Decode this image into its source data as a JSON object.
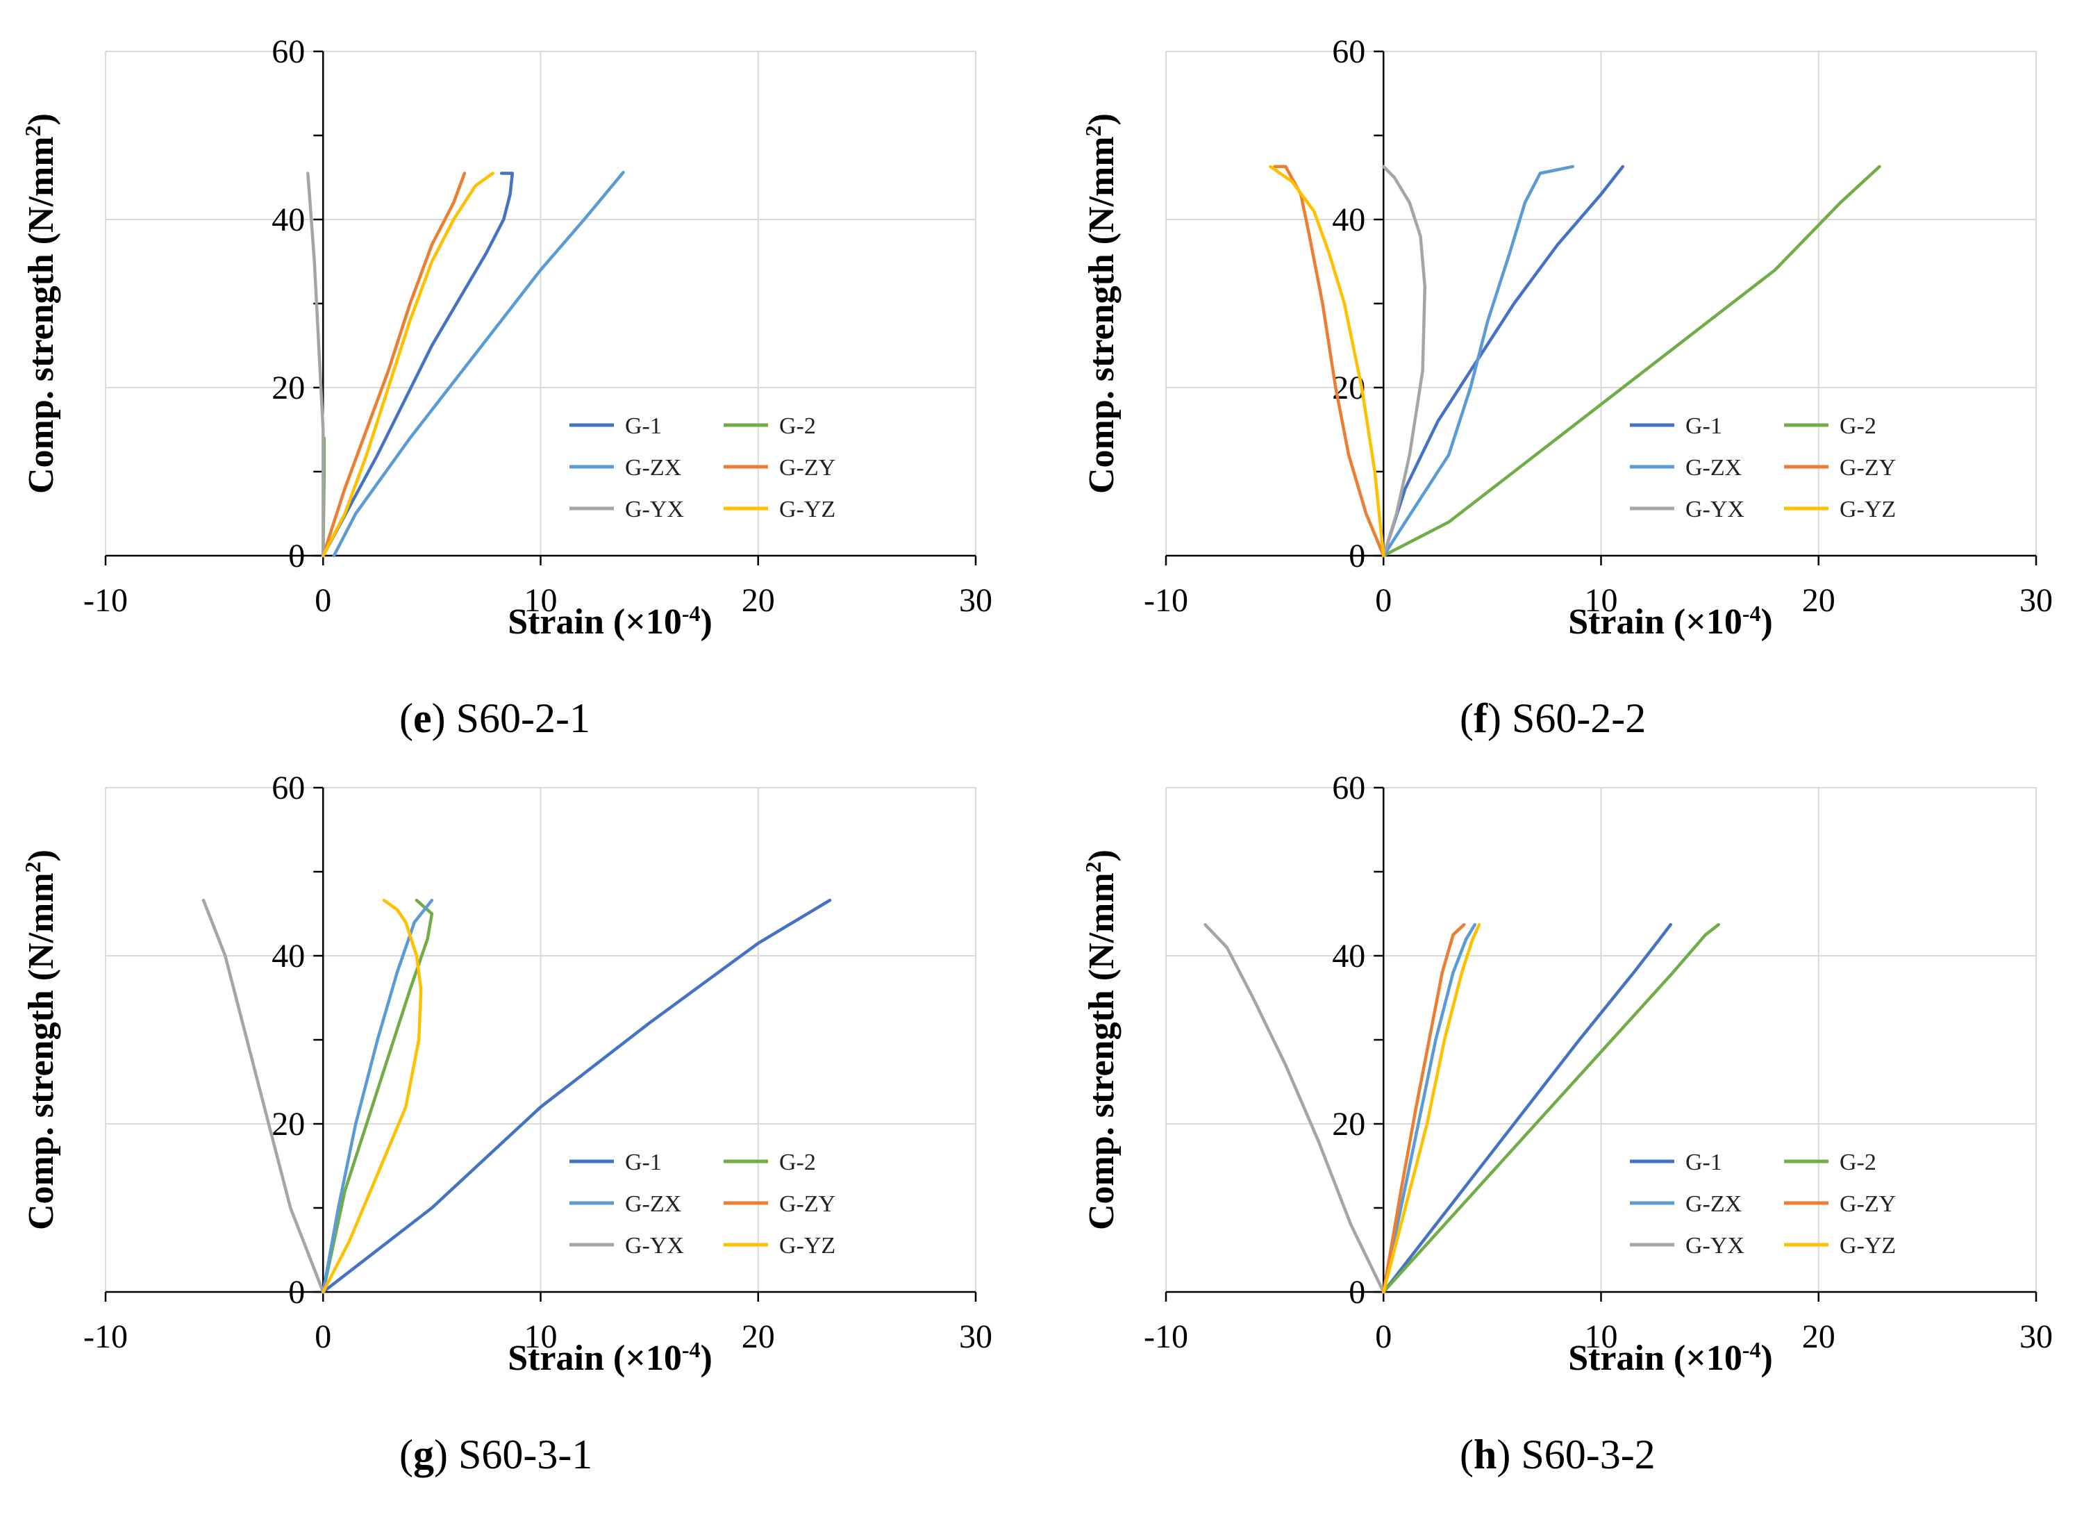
{
  "colors": {
    "G-1": "#4472C4",
    "G-2": "#70AD47",
    "G-ZX": "#5B9BD5",
    "G-ZY": "#ED7D31",
    "G-YX": "#A5A5A5",
    "G-YZ": "#FFC000",
    "grid": "#d9d9d9",
    "axis": "#000000"
  },
  "chart_data": [
    {
      "type": "line",
      "caption_letter": "e",
      "caption_text": "S60-2-1",
      "xlabel": "Strain (×10",
      "xlabel_sup": "-4",
      "xlabel_end": ")",
      "ylabel": "Comp. strength (N/mm",
      "ylabel_sup": "2",
      "ylabel_end": ")",
      "xlim": [
        -10,
        30
      ],
      "ylim": [
        0,
        60
      ],
      "xticks": [
        "-10",
        "0",
        "10",
        "20",
        "30"
      ],
      "yticks": [
        "0",
        "20",
        "40",
        "60"
      ],
      "legend": [
        "G-1",
        "G-2",
        "G-ZX",
        "G-ZY",
        "G-YX",
        "G-YZ"
      ],
      "series": [
        {
          "name": "G-1",
          "points": [
            [
              0,
              0
            ],
            [
              2.5,
              12
            ],
            [
              5,
              25
            ],
            [
              7.5,
              36
            ],
            [
              8.3,
              40
            ],
            [
              8.6,
              43
            ],
            [
              8.7,
              45.5
            ],
            [
              8.2,
              45.5
            ]
          ]
        },
        {
          "name": "G-2",
          "points": [
            [
              0,
              0
            ],
            [
              0.05,
              10
            ],
            [
              0.05,
              14
            ]
          ]
        },
        {
          "name": "G-ZX",
          "points": [
            [
              0.5,
              0
            ],
            [
              1.5,
              5
            ],
            [
              4,
              14
            ],
            [
              7,
              24
            ],
            [
              10,
              34
            ],
            [
              12,
              40
            ],
            [
              13.8,
              45.6
            ]
          ]
        },
        {
          "name": "G-ZY",
          "points": [
            [
              0,
              0
            ],
            [
              1,
              8
            ],
            [
              2,
              15
            ],
            [
              3,
              22
            ],
            [
              4,
              30
            ],
            [
              5,
              37
            ],
            [
              6,
              42
            ],
            [
              6.5,
              45.5
            ]
          ]
        },
        {
          "name": "G-YX",
          "points": [
            [
              0,
              0
            ],
            [
              0,
              15
            ],
            [
              -0.2,
              25
            ],
            [
              -0.4,
              35
            ],
            [
              -0.6,
              42
            ],
            [
              -0.7,
              45.5
            ]
          ]
        },
        {
          "name": "G-YZ",
          "points": [
            [
              0,
              0
            ],
            [
              1,
              5
            ],
            [
              2,
              12
            ],
            [
              3,
              20
            ],
            [
              4,
              28
            ],
            [
              5,
              35
            ],
            [
              6,
              40
            ],
            [
              7,
              44
            ],
            [
              7.8,
              45.5
            ]
          ]
        }
      ]
    },
    {
      "type": "line",
      "caption_letter": "f",
      "caption_text": "S60-2-2",
      "xlabel": "Strain (×10",
      "xlabel_sup": "-4",
      "xlabel_end": ")",
      "ylabel": "Comp. strength (N/mm",
      "ylabel_sup": "2",
      "ylabel_end": ")",
      "xlim": [
        -10,
        30
      ],
      "ylim": [
        0,
        60
      ],
      "xticks": [
        "-10",
        "0",
        "10",
        "20",
        "30"
      ],
      "yticks": [
        "0",
        "20",
        "40",
        "60"
      ],
      "legend": [
        "G-1",
        "G-2",
        "G-ZX",
        "G-ZY",
        "G-YX",
        "G-YZ"
      ],
      "series": [
        {
          "name": "G-1",
          "points": [
            [
              0,
              0
            ],
            [
              1,
              8
            ],
            [
              2.5,
              16
            ],
            [
              4,
              22
            ],
            [
              6,
              30
            ],
            [
              8,
              37
            ],
            [
              10,
              43
            ],
            [
              11,
              46.3
            ]
          ]
        },
        {
          "name": "G-2",
          "points": [
            [
              0,
              0
            ],
            [
              3,
              4
            ],
            [
              6,
              10
            ],
            [
              10,
              18
            ],
            [
              14,
              26
            ],
            [
              18,
              34
            ],
            [
              21,
              42
            ],
            [
              22.8,
              46.3
            ]
          ]
        },
        {
          "name": "G-ZX",
          "points": [
            [
              0,
              0
            ],
            [
              1.5,
              6
            ],
            [
              3,
              12
            ],
            [
              4,
              20
            ],
            [
              4.8,
              28
            ],
            [
              5.8,
              36
            ],
            [
              6.5,
              42
            ],
            [
              7.2,
              45.5
            ],
            [
              8.7,
              46.3
            ]
          ]
        },
        {
          "name": "G-ZY",
          "points": [
            [
              0,
              0
            ],
            [
              -0.8,
              5
            ],
            [
              -1.6,
              12
            ],
            [
              -2.2,
              20
            ],
            [
              -2.8,
              30
            ],
            [
              -3.4,
              38
            ],
            [
              -3.8,
              43
            ],
            [
              -4.5,
              46.3
            ],
            [
              -5,
              46.3
            ]
          ]
        },
        {
          "name": "G-YX",
          "points": [
            [
              0,
              0
            ],
            [
              0.6,
              5
            ],
            [
              1.2,
              12
            ],
            [
              1.8,
              22
            ],
            [
              1.9,
              32
            ],
            [
              1.7,
              38
            ],
            [
              1.2,
              42
            ],
            [
              0.5,
              45
            ],
            [
              0,
              46.3
            ]
          ]
        },
        {
          "name": "G-YZ",
          "points": [
            [
              0,
              0
            ],
            [
              -0.4,
              10
            ],
            [
              -1,
              20
            ],
            [
              -1.8,
              30
            ],
            [
              -2.5,
              36
            ],
            [
              -3.2,
              41
            ],
            [
              -4.2,
              44.5
            ],
            [
              -5.2,
              46.3
            ]
          ]
        }
      ]
    },
    {
      "type": "line",
      "caption_letter": "g",
      "caption_text": "S60-3-1",
      "xlabel": "Strain (×10",
      "xlabel_sup": "-4",
      "xlabel_end": ")",
      "ylabel": "Comp. strength (N/mm",
      "ylabel_sup": "2",
      "ylabel_end": ")",
      "xlim": [
        -10,
        30
      ],
      "ylim": [
        0,
        60
      ],
      "xticks": [
        "-10",
        "0",
        "10",
        "20",
        "30"
      ],
      "yticks": [
        "0",
        "20",
        "40",
        "60"
      ],
      "legend": [
        "G-1",
        "G-2",
        "G-ZX",
        "G-ZY",
        "G-YX",
        "G-YZ"
      ],
      "series": [
        {
          "name": "G-1",
          "points": [
            [
              0,
              0
            ],
            [
              5,
              10
            ],
            [
              10,
              22
            ],
            [
              15,
              32
            ],
            [
              20,
              41.5
            ],
            [
              23.3,
              46.6
            ]
          ]
        },
        {
          "name": "G-2",
          "points": [
            [
              0,
              0
            ],
            [
              1,
              12
            ],
            [
              2,
              20
            ],
            [
              3,
              28
            ],
            [
              4,
              36
            ],
            [
              4.8,
              42
            ],
            [
              5,
              45
            ],
            [
              4.3,
              46.6
            ]
          ]
        },
        {
          "name": "G-ZX",
          "points": [
            [
              0,
              0
            ],
            [
              0.7,
              10
            ],
            [
              1.5,
              20
            ],
            [
              2.5,
              30
            ],
            [
              3.4,
              38
            ],
            [
              4.2,
              44
            ],
            [
              5,
              46.6
            ]
          ]
        },
        {
          "name": "G-YX",
          "points": [
            [
              0,
              0
            ],
            [
              -1.5,
              10
            ],
            [
              -2.5,
              20
            ],
            [
              -3.5,
              30
            ],
            [
              -4.5,
              40
            ],
            [
              -5.5,
              46.6
            ]
          ]
        },
        {
          "name": "G-YZ",
          "points": [
            [
              0,
              0
            ],
            [
              1.2,
              6
            ],
            [
              2.5,
              14
            ],
            [
              3.8,
              22
            ],
            [
              4.4,
              30
            ],
            [
              4.5,
              36
            ],
            [
              4.3,
              40
            ],
            [
              3.8,
              44
            ],
            [
              3.4,
              45.5
            ],
            [
              2.8,
              46.6
            ]
          ]
        }
      ]
    },
    {
      "type": "line",
      "caption_letter": "h",
      "caption_text": "S60-3-2",
      "xlabel": "Strain (×10",
      "xlabel_sup": "-4",
      "xlabel_end": ")",
      "ylabel": "Comp. strength (N/mm",
      "ylabel_sup": "2",
      "ylabel_end": ")",
      "xlim": [
        -10,
        30
      ],
      "ylim": [
        0,
        60
      ],
      "xticks": [
        "-10",
        "0",
        "10",
        "20",
        "30"
      ],
      "yticks": [
        "0",
        "20",
        "40",
        "60"
      ],
      "legend": [
        "G-1",
        "G-2",
        "G-ZX",
        "G-ZY",
        "G-YX",
        "G-YZ"
      ],
      "series": [
        {
          "name": "G-1",
          "points": [
            [
              0,
              0
            ],
            [
              3,
              10
            ],
            [
              6,
              20
            ],
            [
              9,
              30
            ],
            [
              11.5,
              38
            ],
            [
              12.7,
              42
            ],
            [
              13.2,
              43.7
            ]
          ]
        },
        {
          "name": "G-2",
          "points": [
            [
              0,
              0
            ],
            [
              3.5,
              10
            ],
            [
              7,
              20
            ],
            [
              10.5,
              30
            ],
            [
              13.3,
              38
            ],
            [
              14.8,
              42.5
            ],
            [
              15.4,
              43.7
            ]
          ]
        },
        {
          "name": "G-ZX",
          "points": [
            [
              0,
              0
            ],
            [
              0.8,
              10
            ],
            [
              1.6,
              20
            ],
            [
              2.4,
              30
            ],
            [
              3.2,
              38
            ],
            [
              3.8,
              42
            ],
            [
              4.2,
              43.7
            ]
          ]
        },
        {
          "name": "G-ZY",
          "points": [
            [
              0,
              0
            ],
            [
              0.8,
              12
            ],
            [
              1.5,
              22
            ],
            [
              2.1,
              30
            ],
            [
              2.7,
              38
            ],
            [
              3.2,
              42.5
            ],
            [
              3.7,
              43.7
            ]
          ]
        },
        {
          "name": "G-YX",
          "points": [
            [
              0,
              0
            ],
            [
              -1.5,
              8
            ],
            [
              -3,
              18
            ],
            [
              -4.5,
              27
            ],
            [
              -6,
              35
            ],
            [
              -7.2,
              41
            ],
            [
              -8.2,
              43.7
            ]
          ]
        },
        {
          "name": "G-YZ",
          "points": [
            [
              0,
              0
            ],
            [
              1,
              10
            ],
            [
              2,
              20
            ],
            [
              2.8,
              30
            ],
            [
              3.6,
              38
            ],
            [
              4.1,
              42
            ],
            [
              4.4,
              43.7
            ]
          ]
        }
      ]
    }
  ]
}
